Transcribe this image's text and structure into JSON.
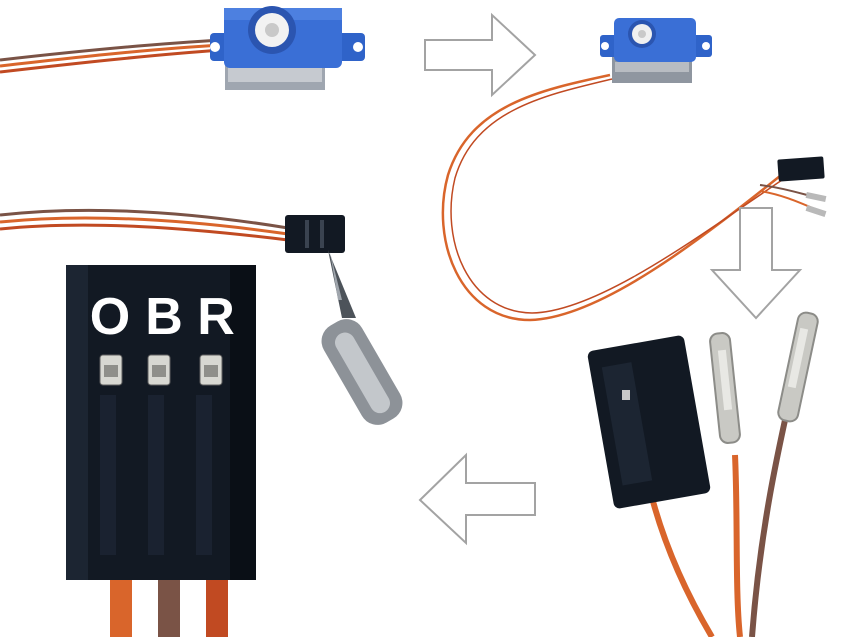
{
  "image": {
    "background_color": "#ffffff",
    "pin_labels": [
      "O",
      "B",
      "R"
    ],
    "wire_colors": {
      "orange": "#d9652b",
      "brown": "#7a5346",
      "red": "#c14a22"
    },
    "servo_color": "#2f63c9",
    "connector_color": "#121923",
    "arrow_color": "#a3a3a3",
    "arrows": [
      "arrow-right",
      "arrow-down",
      "arrow-left"
    ]
  }
}
